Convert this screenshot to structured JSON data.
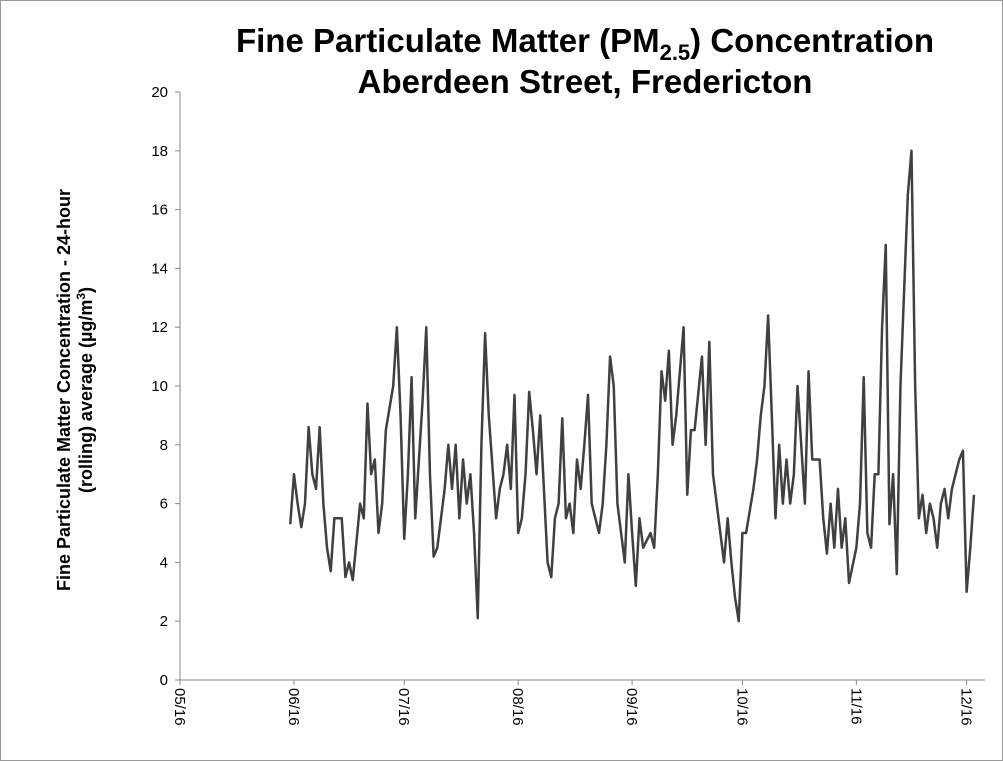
{
  "chart_data": {
    "type": "line",
    "title": {
      "line1_start": "Fine Particulate Matter (PM",
      "line1_sub": "2.5",
      "line1_end": ") Concentration",
      "line2": "Aberdeen Street, Fredericton"
    },
    "y_label": {
      "line1": "Fine Particulate Matter Concentration - 24-hour",
      "line2_start": "(rolling) average (µg/m",
      "line2_sup": "3",
      "line2_end": ")"
    },
    "x": [
      30,
      31,
      32,
      33,
      34,
      35,
      36,
      37,
      38,
      39,
      40,
      41,
      42,
      44,
      45,
      46,
      47,
      48,
      49,
      50,
      51,
      52,
      53,
      54,
      55,
      56,
      58,
      59,
      60,
      61,
      62,
      63,
      64,
      65,
      66,
      67,
      68,
      69,
      70,
      72,
      73,
      74,
      75,
      76,
      77,
      78,
      79,
      80,
      81,
      82,
      83,
      84,
      86,
      87,
      88,
      89,
      90,
      91,
      92,
      93,
      94,
      95,
      96,
      97,
      98,
      100,
      101,
      102,
      103,
      104,
      105,
      106,
      107,
      108,
      109,
      110,
      111,
      112,
      114,
      115,
      116,
      117,
      118,
      119,
      120,
      121,
      122,
      123,
      124,
      125,
      126,
      128,
      129,
      130,
      131,
      132,
      133,
      134,
      135,
      136,
      137,
      138,
      139,
      140,
      142,
      143,
      144,
      145,
      146,
      147,
      148,
      149,
      150,
      151,
      152,
      153,
      154,
      156,
      157,
      158,
      159,
      160,
      161,
      162,
      163,
      164,
      165,
      166,
      167,
      168,
      170,
      171,
      172,
      173,
      174,
      175,
      176,
      177,
      178,
      179,
      180,
      181,
      182,
      184,
      185,
      186,
      187,
      188,
      189,
      190,
      191,
      192,
      193,
      194,
      195,
      196,
      198,
      199,
      200,
      201,
      202,
      203,
      204,
      205,
      206,
      207,
      208,
      209,
      210,
      212,
      213,
      214,
      215,
      216
    ],
    "series": [
      {
        "color": "#404040",
        "values": [
          5.3,
          7,
          6,
          5.2,
          6,
          8.6,
          7,
          6.5,
          8.6,
          6,
          4.5,
          3.7,
          5.5,
          5.5,
          3.5,
          4,
          3.4,
          4.7,
          6,
          5.5,
          9.4,
          7,
          7.5,
          5,
          6,
          8.5,
          10,
          12,
          9,
          4.8,
          7,
          10.3,
          5.5,
          7.5,
          9.5,
          12,
          7,
          4.2,
          4.5,
          6.5,
          8,
          6.5,
          8,
          5.5,
          7.5,
          6,
          7,
          5,
          2.1,
          8,
          11.8,
          9,
          5.5,
          6.5,
          7,
          8,
          6.5,
          9.7,
          5,
          5.5,
          7,
          9.8,
          8.5,
          7,
          9,
          4,
          3.5,
          5.5,
          6,
          8.9,
          5.5,
          6,
          5,
          7.5,
          6.5,
          8,
          9.7,
          6,
          5,
          6,
          8,
          11,
          10,
          6,
          5,
          4,
          7,
          5,
          3.2,
          5.5,
          4.5,
          5,
          4.5,
          7,
          10.5,
          9.5,
          11.2,
          8,
          9,
          10.5,
          12,
          6.3,
          8.5,
          8.5,
          11,
          8,
          11.5,
          7,
          6,
          5,
          4,
          5.5,
          4,
          2.8,
          2,
          5,
          5,
          6.5,
          7.5,
          9,
          10,
          12.4,
          9,
          5.5,
          8,
          6,
          7.5,
          6,
          7,
          10,
          6,
          10.5,
          7.5,
          7.5,
          7.5,
          5.5,
          4.3,
          6,
          4.5,
          6.5,
          4.5,
          5.5,
          3.3,
          4.5,
          6,
          10.3,
          5,
          4.5,
          7,
          7,
          12,
          14.8,
          5.3,
          7,
          3.6,
          10,
          16.5,
          18,
          10,
          5.5,
          6.3,
          5,
          6,
          5.5,
          4.5,
          6,
          6.5,
          5.5,
          6.5,
          7.5,
          7.8,
          3,
          4.5,
          6.3
        ]
      }
    ],
    "xlim": [
      0,
      219
    ],
    "xticks": [
      {
        "value": 0,
        "label": "05/16"
      },
      {
        "value": 31,
        "label": "06/16"
      },
      {
        "value": 61,
        "label": "07/16"
      },
      {
        "value": 92,
        "label": "08/16"
      },
      {
        "value": 123,
        "label": "09/16"
      },
      {
        "value": 153,
        "label": "10/16"
      },
      {
        "value": 184,
        "label": "11/16"
      },
      {
        "value": 214,
        "label": "12/16"
      }
    ],
    "ylim": [
      0,
      20
    ],
    "yticks": [
      0,
      2,
      4,
      6,
      8,
      10,
      12,
      14,
      16,
      18,
      20
    ],
    "grid": false
  }
}
